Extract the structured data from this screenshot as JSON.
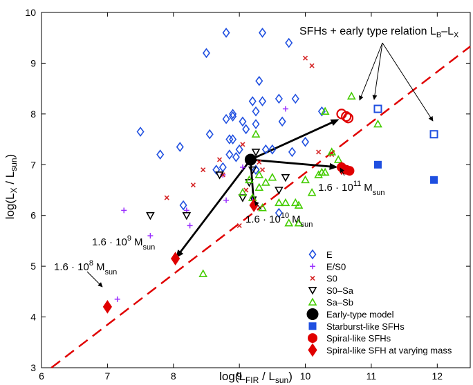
{
  "chart_data": {
    "type": "scatter",
    "xlabel": "log(L_FIR / L_sun)",
    "ylabel": "log(L_X / L_sun)",
    "xlim": [
      6,
      12.5
    ],
    "ylim": [
      3,
      10
    ],
    "xticks": [
      6,
      7,
      8,
      9,
      10,
      11,
      12
    ],
    "yticks": [
      3,
      4,
      5,
      6,
      7,
      8,
      9,
      10
    ],
    "grid": false,
    "legend_position": "bottom-right",
    "relation_line": {
      "label": "early type relation L_B-L_X",
      "x": [
        6.15,
        12.5
      ],
      "y": [
        3.0,
        9.33
      ]
    },
    "series": [
      {
        "name": "E",
        "marker": "diamond-open",
        "color": "#1f4fe0",
        "points": [
          [
            7.5,
            7.65
          ],
          [
            7.8,
            7.2
          ],
          [
            8.1,
            7.35
          ],
          [
            8.15,
            6.2
          ],
          [
            8.5,
            9.2
          ],
          [
            8.55,
            7.6
          ],
          [
            8.65,
            6.9
          ],
          [
            8.75,
            6.95
          ],
          [
            8.8,
            7.9
          ],
          [
            8.85,
            7.5
          ],
          [
            8.85,
            7.2
          ],
          [
            8.8,
            9.6
          ],
          [
            8.9,
            7.95
          ],
          [
            8.9,
            7.5
          ],
          [
            8.9,
            8.0
          ],
          [
            8.95,
            7.15
          ],
          [
            9.0,
            7.3
          ],
          [
            9.05,
            7.85
          ],
          [
            9.1,
            7.7
          ],
          [
            9.25,
            7.8
          ],
          [
            9.2,
            8.25
          ],
          [
            9.25,
            6.9
          ],
          [
            9.25,
            8.05
          ],
          [
            9.3,
            8.65
          ],
          [
            9.35,
            9.6
          ],
          [
            9.35,
            8.25
          ],
          [
            9.4,
            7.3
          ],
          [
            9.5,
            7.3
          ],
          [
            9.6,
            8.3
          ],
          [
            9.65,
            7.85
          ],
          [
            9.75,
            9.4
          ],
          [
            9.8,
            7.25
          ],
          [
            9.85,
            8.3
          ],
          [
            10.0,
            7.45
          ],
          [
            10.25,
            8.05
          ],
          [
            9.6,
            6.05
          ]
        ]
      },
      {
        "name": "E/S0",
        "marker": "plus",
        "color": "#9b30ff",
        "points": [
          [
            7.25,
            6.1
          ],
          [
            7.65,
            5.6
          ],
          [
            8.2,
            6.1
          ],
          [
            8.25,
            5.8
          ],
          [
            8.75,
            6.8
          ],
          [
            8.8,
            6.3
          ],
          [
            9.05,
            6.95
          ],
          [
            9.2,
            6.3
          ],
          [
            9.7,
            8.1
          ],
          [
            7.15,
            4.35
          ]
        ]
      },
      {
        "name": "S0",
        "marker": "cross",
        "color": "#d62728",
        "points": [
          [
            7.9,
            6.35
          ],
          [
            8.3,
            6.6
          ],
          [
            8.45,
            6.9
          ],
          [
            8.7,
            7.1
          ],
          [
            8.75,
            6.8
          ],
          [
            9.05,
            7.4
          ],
          [
            9.1,
            6.5
          ],
          [
            9.3,
            7.05
          ],
          [
            9.35,
            6.9
          ],
          [
            10.0,
            9.1
          ],
          [
            10.1,
            8.95
          ],
          [
            10.2,
            7.25
          ],
          [
            10.4,
            7.2
          ],
          [
            9.0,
            5.8
          ]
        ]
      },
      {
        "name": "S0-Sa",
        "marker": "triangle-down-open",
        "color": "#000000",
        "points": [
          [
            7.65,
            6.0
          ],
          [
            8.2,
            6.0
          ],
          [
            8.7,
            6.8
          ],
          [
            9.05,
            6.35
          ],
          [
            9.15,
            6.65
          ],
          [
            9.25,
            7.25
          ],
          [
            9.7,
            6.75
          ],
          [
            9.6,
            6.5
          ],
          [
            9.2,
            6.9
          ]
        ]
      },
      {
        "name": "Sa-Sb",
        "marker": "triangle-up-open",
        "color": "#44cc00",
        "points": [
          [
            8.45,
            4.85
          ],
          [
            9.05,
            6.45
          ],
          [
            9.15,
            6.7
          ],
          [
            9.2,
            6.35
          ],
          [
            9.25,
            7.6
          ],
          [
            9.3,
            6.8
          ],
          [
            9.3,
            6.55
          ],
          [
            9.35,
            6.15
          ],
          [
            9.4,
            6.65
          ],
          [
            9.5,
            6.75
          ],
          [
            9.6,
            6.25
          ],
          [
            9.7,
            6.25
          ],
          [
            9.75,
            5.85
          ],
          [
            9.85,
            6.25
          ],
          [
            9.9,
            6.2
          ],
          [
            10.0,
            6.7
          ],
          [
            10.1,
            6.45
          ],
          [
            10.25,
            6.85
          ],
          [
            10.3,
            6.85
          ],
          [
            10.3,
            8.05
          ],
          [
            10.4,
            7.25
          ],
          [
            10.5,
            7.1
          ],
          [
            10.7,
            8.35
          ],
          [
            11.1,
            7.8
          ],
          [
            9.9,
            5.85
          ],
          [
            10.2,
            6.8
          ]
        ]
      },
      {
        "name": "Early-type model",
        "marker": "circle-filled",
        "color": "#000000",
        "points": [
          [
            9.17,
            7.1
          ]
        ]
      },
      {
        "name": "Starburst-like SFHs",
        "marker": "square",
        "color": "#1f4fe0",
        "points": [
          [
            11.1,
            7.0
          ],
          [
            11.95,
            6.7
          ]
        ],
        "open_points": [
          [
            11.1,
            8.1
          ],
          [
            11.95,
            7.6
          ]
        ]
      },
      {
        "name": "Spiral-like SFHs",
        "marker": "circle",
        "color": "#e00000",
        "points": [
          [
            10.55,
            6.95
          ],
          [
            10.62,
            6.9
          ],
          [
            10.67,
            6.88
          ]
        ],
        "open_points": [
          [
            10.55,
            8.0
          ],
          [
            10.62,
            7.95
          ],
          [
            10.65,
            7.92
          ]
        ]
      },
      {
        "name": "Spiral-like SFH at varying mass",
        "marker": "diamond-filled",
        "color": "#e00000",
        "points": [
          [
            7.0,
            4.2
          ],
          [
            8.03,
            5.15
          ],
          [
            9.22,
            6.2
          ],
          [
            10.55,
            6.93
          ]
        ]
      }
    ],
    "arrows": [
      {
        "from": [
          9.17,
          7.1
        ],
        "to": [
          8.03,
          5.15
        ]
      },
      {
        "from": [
          9.17,
          7.1
        ],
        "to": [
          9.22,
          6.2
        ]
      },
      {
        "from": [
          9.17,
          7.1
        ],
        "to": [
          10.5,
          6.95
        ]
      },
      {
        "from": [
          9.17,
          7.1
        ],
        "to": [
          10.52,
          7.9
        ]
      }
    ],
    "annotations": {
      "top_label_main": "SFHs + early type relation L",
      "top_label_sub1": "B",
      "top_label_dash": "–L",
      "top_label_sub2": "X",
      "mass_prefix": "1.6 · 10",
      "mass_unit": "M",
      "mass_unit_sub": "sun",
      "mass_11_exp": "11",
      "mass_10_exp": "10",
      "mass_9_exp": "9",
      "mass_8_exp": "8"
    },
    "axis_text": {
      "x_main": "log(L",
      "x_sub1": "FIR",
      "x_mid": " / L",
      "x_sub2": "sun",
      "x_end": ")",
      "y_main": "log(L",
      "y_sub1": "X",
      "y_mid": " / L",
      "y_sub2": "sun",
      "y_end": ")"
    }
  }
}
